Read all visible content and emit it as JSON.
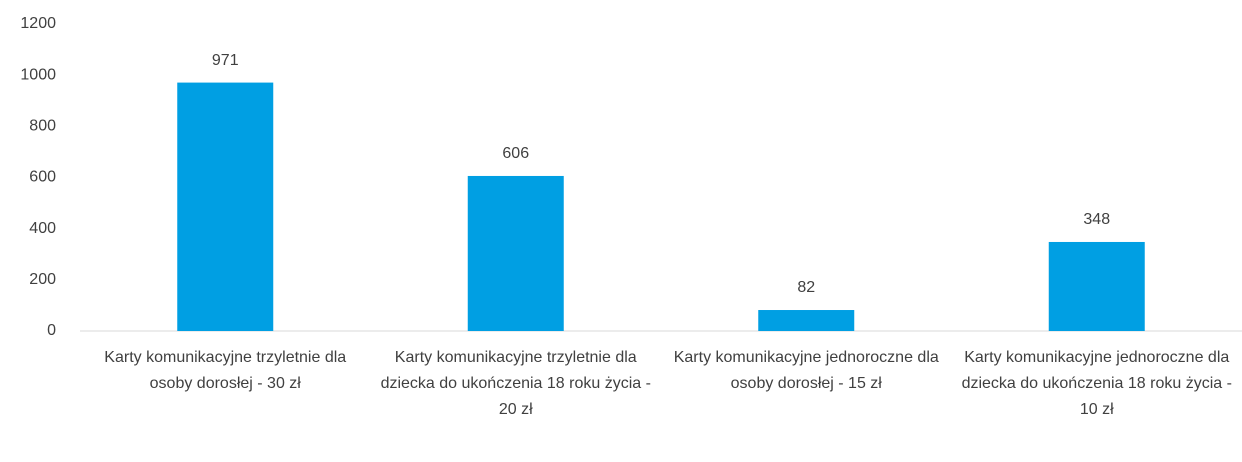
{
  "chart_data": {
    "type": "bar",
    "categories": [
      "Karty komunikacyjne trzyletnie dla osoby dorosłej - 30 zł",
      "Karty komunikacyjne trzyletnie dla dziecka do ukończenia 18 roku życia - 20 zł",
      "Karty komunikacyjne jednoroczne dla osoby dorosłej - 15 zł",
      "Karty komunikacyjne jednoroczne dla dziecka do ukończenia 18 roku życia - 10 zł"
    ],
    "values": [
      971,
      606,
      82,
      348
    ],
    "color": "#009fe3",
    "ylim": [
      0,
      1200
    ],
    "yticks": [
      0,
      200,
      400,
      600,
      800,
      1000,
      1200
    ],
    "grid": false,
    "data_labels": true
  }
}
